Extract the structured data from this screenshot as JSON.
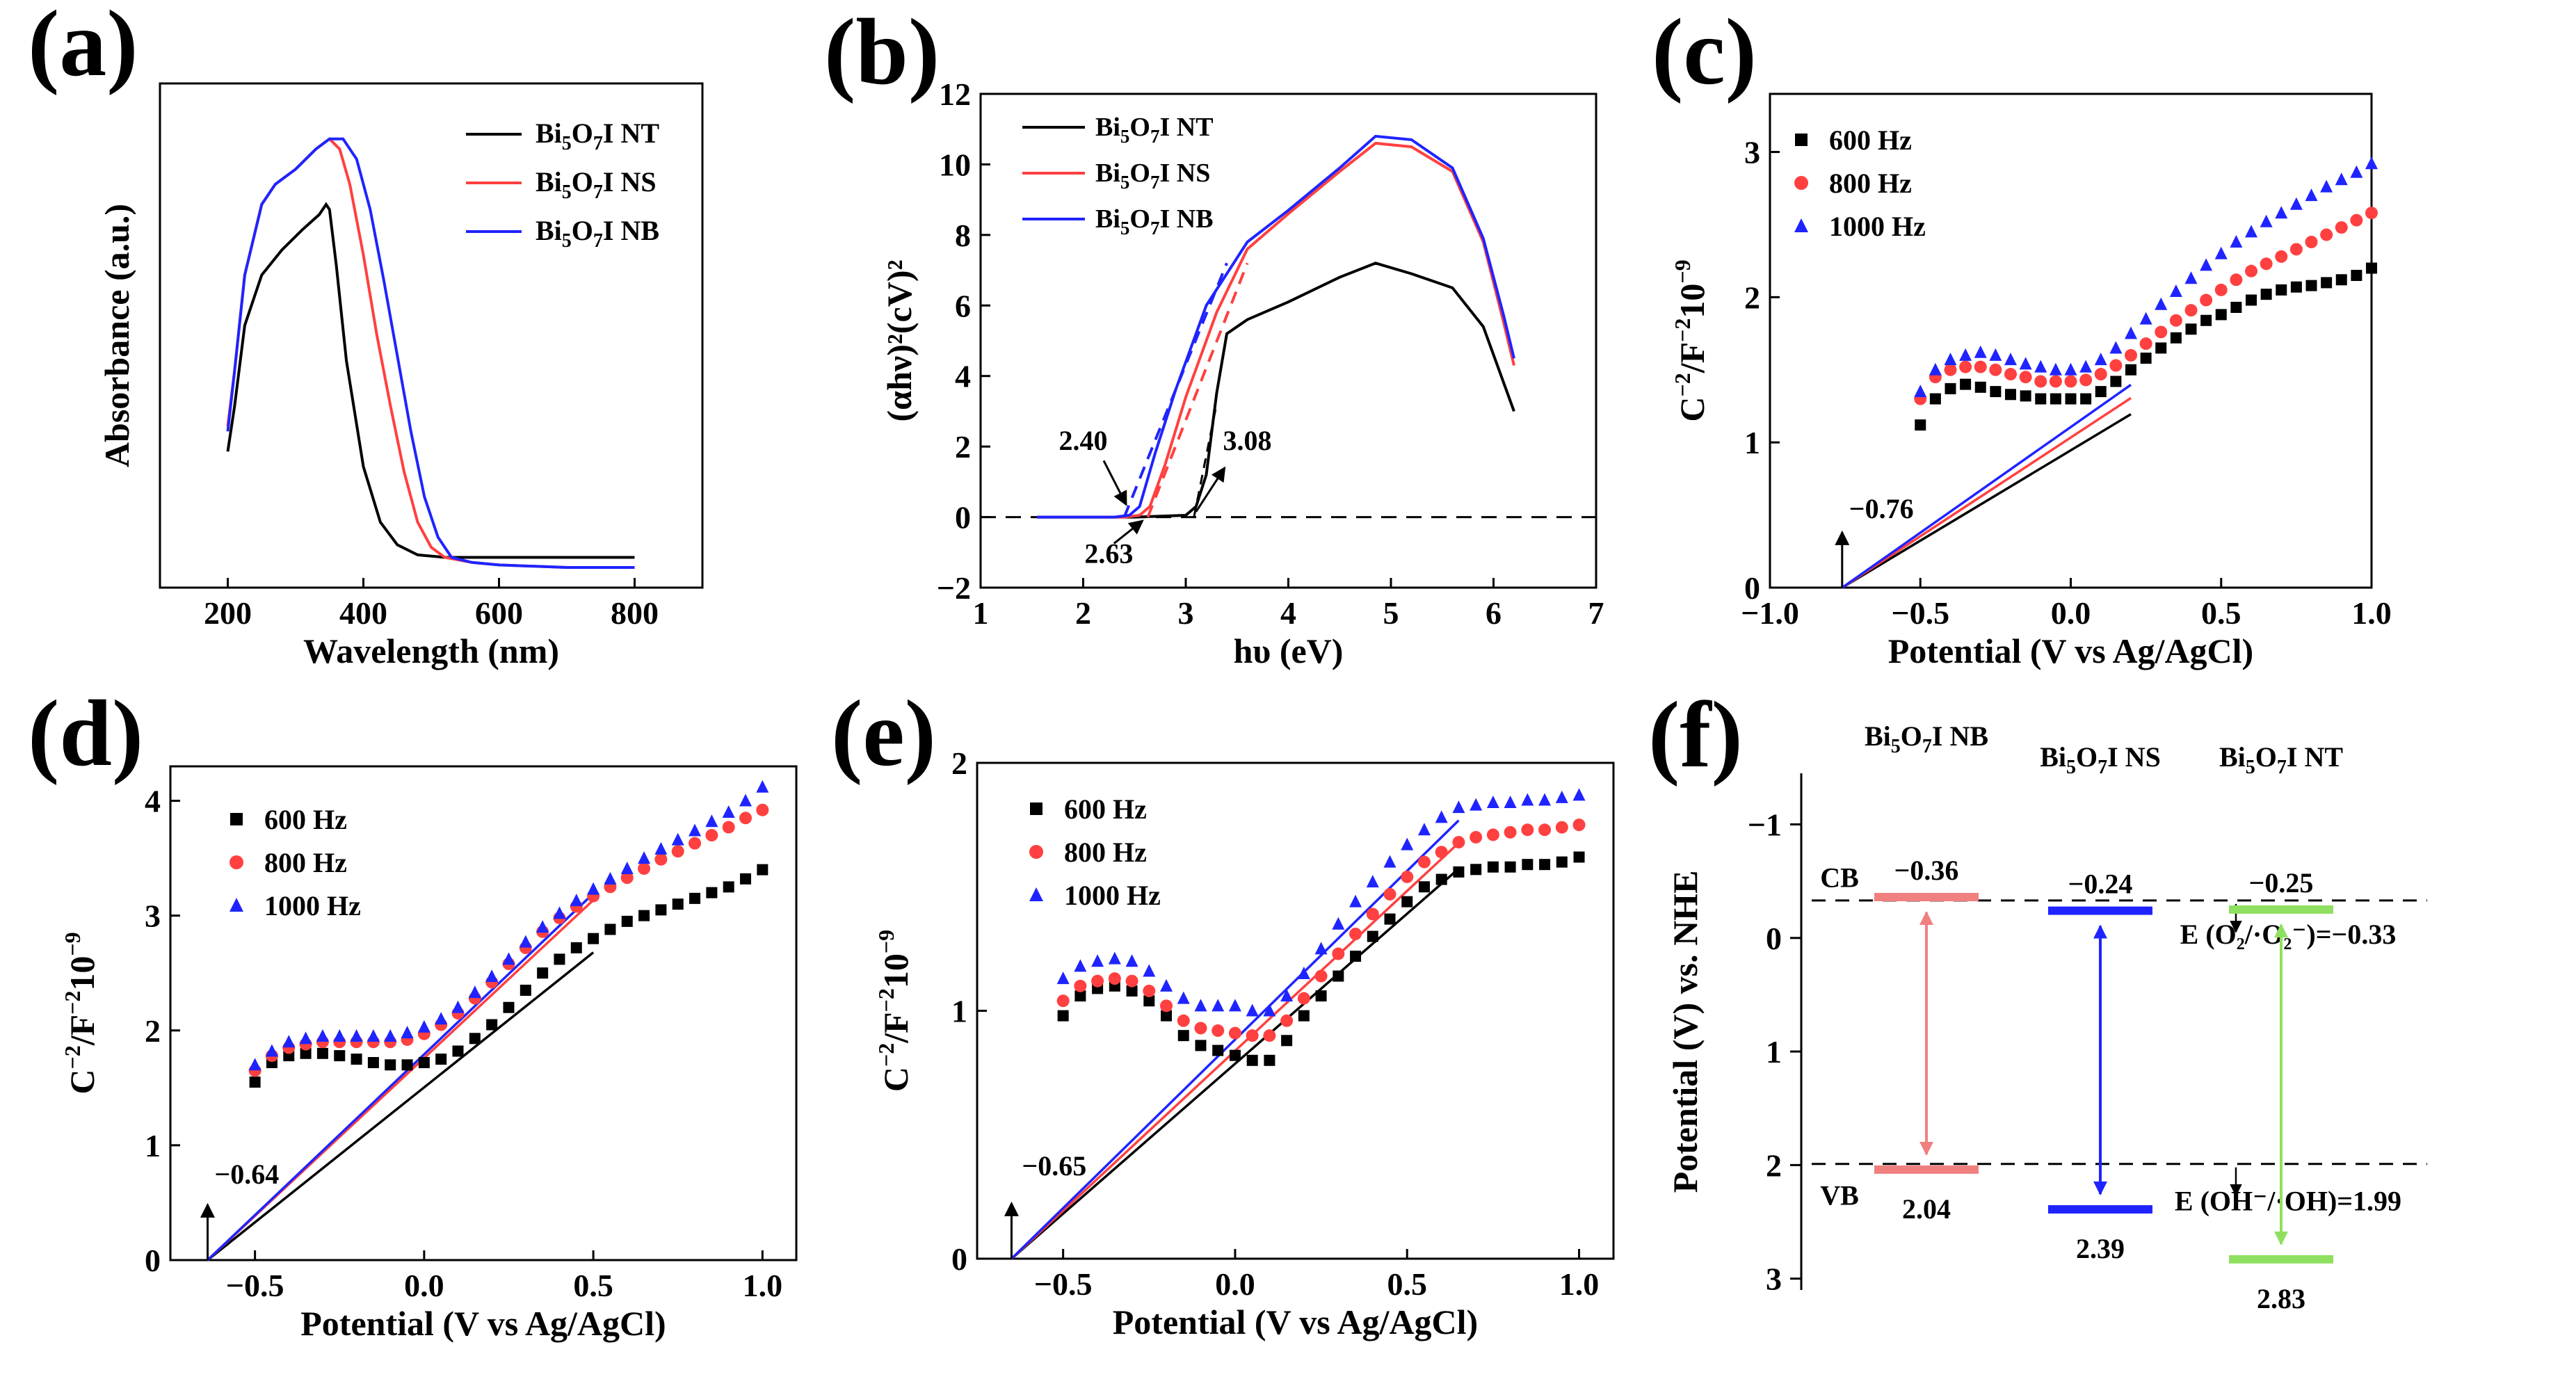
{
  "colors": {
    "black": "#000000",
    "red": "#ff4040",
    "blue": "#1f24ff",
    "green": "#8fe060",
    "pink": "#f08080"
  },
  "icons": {
    "square": "square-marker",
    "circle": "circle-marker",
    "triangle": "triangle-marker"
  },
  "chart_data": [
    {
      "id": "a",
      "type": "line",
      "panel": "(a)",
      "xlabel": "Wavelength (nm)",
      "ylabel": "Absorbance (a.u.)",
      "xlim": [
        100,
        900
      ],
      "ylim": [
        0,
        1.0
      ],
      "xticks": [
        200,
        400,
        600,
        800
      ],
      "yticks": [],
      "legend": [
        "Bi5O7I NT",
        "Bi5O7I NS",
        "Bi5O7I NB"
      ],
      "series": [
        {
          "name": "Bi5O7I NT",
          "color": "#000000",
          "x": [
            200,
            210,
            225,
            250,
            280,
            310,
            335,
            345,
            350,
            360,
            375,
            400,
            425,
            450,
            480,
            520,
            560,
            600,
            700,
            800
          ],
          "y": [
            0.27,
            0.36,
            0.52,
            0.62,
            0.67,
            0.71,
            0.74,
            0.76,
            0.75,
            0.64,
            0.45,
            0.24,
            0.13,
            0.085,
            0.065,
            0.06,
            0.06,
            0.06,
            0.06,
            0.06
          ]
        },
        {
          "name": "Bi5O7I NS",
          "color": "#ff4040",
          "x": [
            200,
            210,
            225,
            250,
            270,
            300,
            330,
            350,
            365,
            380,
            400,
            420,
            440,
            460,
            480,
            500,
            520,
            560,
            600,
            700,
            800
          ],
          "y": [
            0.32,
            0.43,
            0.62,
            0.76,
            0.8,
            0.83,
            0.87,
            0.89,
            0.87,
            0.8,
            0.66,
            0.5,
            0.36,
            0.23,
            0.13,
            0.08,
            0.06,
            0.05,
            0.045,
            0.04,
            0.04
          ]
        },
        {
          "name": "Bi5O7I NB",
          "color": "#1f24ff",
          "x": [
            200,
            210,
            225,
            250,
            270,
            300,
            330,
            350,
            370,
            390,
            410,
            430,
            450,
            470,
            490,
            510,
            530,
            560,
            600,
            700,
            800
          ],
          "y": [
            0.31,
            0.43,
            0.62,
            0.76,
            0.8,
            0.83,
            0.87,
            0.89,
            0.89,
            0.85,
            0.75,
            0.61,
            0.46,
            0.31,
            0.18,
            0.1,
            0.06,
            0.05,
            0.045,
            0.04,
            0.04
          ]
        }
      ]
    },
    {
      "id": "b",
      "type": "line",
      "panel": "(b)",
      "xlabel": "hυ (eV)",
      "ylabel": "(αhν)²(cV)²",
      "xlim": [
        1,
        7
      ],
      "ylim": [
        -2,
        12
      ],
      "xticks": [
        1,
        2,
        3,
        4,
        5,
        6,
        7
      ],
      "yticks": [
        -2,
        0,
        2,
        4,
        6,
        8,
        10,
        12
      ],
      "legend": [
        "Bi5O7I NT",
        "Bi5O7I NS",
        "Bi5O7I NB"
      ],
      "annotations": [
        "2.40",
        "2.63",
        "3.08"
      ],
      "series": [
        {
          "name": "Bi5O7I NT",
          "color": "#000000",
          "x": [
            1.55,
            2.5,
            3.0,
            3.1,
            3.2,
            3.3,
            3.4,
            3.6,
            4.0,
            4.5,
            4.85,
            5.2,
            5.6,
            5.9,
            6.1,
            6.2
          ],
          "y": [
            0,
            0,
            0.05,
            0.3,
            1.2,
            3.5,
            5.2,
            5.6,
            6.1,
            6.8,
            7.2,
            6.9,
            6.5,
            5.4,
            3.8,
            3.0
          ]
        },
        {
          "name": "Bi5O7I NS",
          "color": "#ff4040",
          "x": [
            1.55,
            2.4,
            2.55,
            2.65,
            2.8,
            3.0,
            3.3,
            3.6,
            4.0,
            4.5,
            4.85,
            5.2,
            5.6,
            5.9,
            6.1,
            6.2
          ],
          "y": [
            0,
            0,
            0.05,
            0.3,
            1.5,
            3.4,
            5.8,
            7.6,
            8.6,
            9.8,
            10.6,
            10.5,
            9.8,
            7.8,
            5.5,
            4.3
          ]
        },
        {
          "name": "Bi5O7I NB",
          "color": "#1f24ff",
          "x": [
            1.55,
            2.3,
            2.45,
            2.55,
            2.7,
            2.9,
            3.2,
            3.6,
            4.0,
            4.5,
            4.85,
            5.2,
            5.6,
            5.9,
            6.1,
            6.2
          ],
          "y": [
            0,
            0,
            0.05,
            0.3,
            1.8,
            3.6,
            6.0,
            7.8,
            8.7,
            9.9,
            10.8,
            10.7,
            9.9,
            7.9,
            5.7,
            4.5
          ]
        }
      ]
    },
    {
      "id": "c",
      "type": "scatter",
      "panel": "(c)",
      "xlabel": "Potential (V vs Ag/AgCl)",
      "ylabel": "C⁻²/F⁻²10⁻⁹",
      "xlim": [
        -1.0,
        1.0
      ],
      "ylim": [
        0,
        3.4
      ],
      "xticks": [
        -1.0,
        -0.5,
        0.0,
        0.5,
        1.0
      ],
      "yticks": [
        0,
        1,
        2,
        3
      ],
      "intercept_label": "-0.76",
      "intercept": -0.76,
      "legend": [
        "600 Hz",
        "800 Hz",
        "1000 Hz"
      ],
      "x": [
        -0.5,
        -0.45,
        -0.4,
        -0.35,
        -0.3,
        -0.25,
        -0.2,
        -0.15,
        -0.1,
        -0.05,
        0.0,
        0.05,
        0.1,
        0.15,
        0.2,
        0.25,
        0.3,
        0.35,
        0.4,
        0.45,
        0.5,
        0.55,
        0.6,
        0.65,
        0.7,
        0.75,
        0.8,
        0.85,
        0.9,
        0.95,
        1.0
      ],
      "series": [
        {
          "name": "600 Hz",
          "marker": "square",
          "color": "#000000",
          "values": [
            1.12,
            1.3,
            1.37,
            1.4,
            1.38,
            1.35,
            1.33,
            1.32,
            1.3,
            1.3,
            1.3,
            1.3,
            1.35,
            1.42,
            1.5,
            1.58,
            1.65,
            1.72,
            1.78,
            1.84,
            1.88,
            1.93,
            1.98,
            2.02,
            2.05,
            2.07,
            2.08,
            2.1,
            2.12,
            2.15,
            2.2
          ],
          "fit_slope": 1.244
        },
        {
          "name": "800 Hz",
          "marker": "circle",
          "color": "#ff4040",
          "values": [
            1.3,
            1.45,
            1.5,
            1.52,
            1.52,
            1.5,
            1.47,
            1.45,
            1.42,
            1.42,
            1.42,
            1.43,
            1.47,
            1.53,
            1.6,
            1.68,
            1.76,
            1.84,
            1.91,
            1.98,
            2.05,
            2.12,
            2.18,
            2.23,
            2.28,
            2.33,
            2.38,
            2.43,
            2.48,
            2.53,
            2.58
          ],
          "fit_slope": 1.36
        },
        {
          "name": "1000 Hz",
          "marker": "triangle",
          "color": "#1f24ff",
          "values": [
            1.35,
            1.5,
            1.57,
            1.6,
            1.62,
            1.6,
            1.57,
            1.54,
            1.52,
            1.5,
            1.5,
            1.52,
            1.57,
            1.65,
            1.75,
            1.85,
            1.95,
            2.04,
            2.13,
            2.22,
            2.3,
            2.38,
            2.45,
            2.52,
            2.58,
            2.64,
            2.7,
            2.76,
            2.81,
            2.86,
            2.92
          ],
          "fit_slope": 1.455
        }
      ]
    },
    {
      "id": "d",
      "type": "scatter",
      "panel": "(d)",
      "xlabel": "Potential (V vs Ag/AgCl)",
      "ylabel": "C⁻²/F⁻²10⁻⁹",
      "xlim": [
        -0.75,
        1.1
      ],
      "ylim": [
        0,
        4.3
      ],
      "xticks": [
        -0.5,
        0.0,
        0.5,
        1.0
      ],
      "yticks": [
        0,
        1,
        2,
        3,
        4
      ],
      "intercept_label": "-0.64",
      "intercept": -0.64,
      "legend": [
        "600 Hz",
        "800 Hz",
        "1000 Hz"
      ],
      "x": [
        -0.5,
        -0.45,
        -0.4,
        -0.35,
        -0.3,
        -0.25,
        -0.2,
        -0.15,
        -0.1,
        -0.05,
        0.0,
        0.05,
        0.1,
        0.15,
        0.2,
        0.25,
        0.3,
        0.35,
        0.4,
        0.45,
        0.5,
        0.55,
        0.6,
        0.65,
        0.7,
        0.75,
        0.8,
        0.85,
        0.9,
        0.95,
        1.0
      ],
      "series": [
        {
          "name": "600 Hz",
          "marker": "square",
          "color": "#000000",
          "values": [
            1.55,
            1.72,
            1.78,
            1.8,
            1.8,
            1.78,
            1.75,
            1.72,
            1.7,
            1.7,
            1.72,
            1.75,
            1.82,
            1.93,
            2.05,
            2.2,
            2.35,
            2.5,
            2.62,
            2.72,
            2.8,
            2.88,
            2.95,
            3.0,
            3.05,
            3.1,
            3.15,
            3.2,
            3.25,
            3.32,
            3.4
          ],
          "fit_slope": 2.35
        },
        {
          "name": "800 Hz",
          "marker": "circle",
          "color": "#ff4040",
          "values": [
            1.65,
            1.78,
            1.85,
            1.88,
            1.9,
            1.9,
            1.9,
            1.9,
            1.9,
            1.92,
            1.97,
            2.05,
            2.15,
            2.28,
            2.42,
            2.58,
            2.72,
            2.86,
            2.98,
            3.08,
            3.17,
            3.25,
            3.33,
            3.41,
            3.49,
            3.56,
            3.63,
            3.7,
            3.77,
            3.85,
            3.92
          ],
          "fit_slope": 2.75
        },
        {
          "name": "1000 Hz",
          "marker": "triangle",
          "color": "#1f24ff",
          "values": [
            1.7,
            1.82,
            1.9,
            1.93,
            1.95,
            1.95,
            1.95,
            1.95,
            1.95,
            1.98,
            2.03,
            2.1,
            2.2,
            2.33,
            2.47,
            2.62,
            2.77,
            2.9,
            3.02,
            3.13,
            3.23,
            3.32,
            3.41,
            3.5,
            3.58,
            3.66,
            3.74,
            3.82,
            3.9,
            4.0,
            4.12
          ],
          "fit_slope": 2.8
        }
      ]
    },
    {
      "id": "e",
      "type": "scatter",
      "panel": "(e)",
      "xlabel": "Potential (V vs Ag/AgCl)",
      "ylabel": "C⁻²/F⁻²10⁻⁹",
      "xlim": [
        -0.75,
        1.1
      ],
      "ylim": [
        0,
        2.0
      ],
      "xticks": [
        -0.5,
        0.0,
        0.5,
        1.0
      ],
      "yticks": [
        0,
        1,
        2
      ],
      "intercept_label": "-0.65",
      "intercept": -0.65,
      "legend": [
        "600 Hz",
        "800 Hz",
        "1000 Hz"
      ],
      "x": [
        -0.5,
        -0.45,
        -0.4,
        -0.35,
        -0.3,
        -0.25,
        -0.2,
        -0.15,
        -0.1,
        -0.05,
        0.0,
        0.05,
        0.1,
        0.15,
        0.2,
        0.25,
        0.3,
        0.35,
        0.4,
        0.45,
        0.5,
        0.55,
        0.6,
        0.65,
        0.7,
        0.75,
        0.8,
        0.85,
        0.9,
        0.95,
        1.0
      ],
      "series": [
        {
          "name": "600 Hz",
          "marker": "square",
          "color": "#000000",
          "values": [
            0.98,
            1.06,
            1.09,
            1.1,
            1.08,
            1.04,
            0.98,
            0.9,
            0.86,
            0.84,
            0.82,
            0.8,
            0.8,
            0.88,
            0.98,
            1.06,
            1.14,
            1.22,
            1.3,
            1.37,
            1.44,
            1.5,
            1.53,
            1.56,
            1.57,
            1.58,
            1.58,
            1.59,
            1.59,
            1.6,
            1.62
          ],
          "fit_slope": 1.21
        },
        {
          "name": "800 Hz",
          "marker": "circle",
          "color": "#ff4040",
          "values": [
            1.04,
            1.1,
            1.12,
            1.13,
            1.12,
            1.08,
            1.02,
            0.96,
            0.93,
            0.92,
            0.91,
            0.9,
            0.9,
            0.96,
            1.05,
            1.14,
            1.23,
            1.31,
            1.39,
            1.47,
            1.54,
            1.6,
            1.64,
            1.68,
            1.7,
            1.71,
            1.72,
            1.73,
            1.73,
            1.74,
            1.75
          ],
          "fit_slope": 1.29
        },
        {
          "name": "1000 Hz",
          "marker": "triangle",
          "color": "#1f24ff",
          "values": [
            1.13,
            1.18,
            1.2,
            1.21,
            1.2,
            1.16,
            1.1,
            1.05,
            1.02,
            1.02,
            1.02,
            1.0,
            1.0,
            1.06,
            1.15,
            1.25,
            1.35,
            1.44,
            1.52,
            1.6,
            1.67,
            1.73,
            1.78,
            1.82,
            1.83,
            1.84,
            1.84,
            1.85,
            1.85,
            1.86,
            1.87
          ],
          "fit_slope": 1.36
        }
      ]
    },
    {
      "id": "f",
      "type": "band-diagram",
      "panel": "(f)",
      "ylabel": "Potential (V) vs. NHE",
      "ylim": [
        3.1,
        -1.45
      ],
      "yticks": [
        -1,
        0,
        1,
        2,
        3
      ],
      "cb_label": "CB",
      "vb_label": "VB",
      "ref_lines": [
        {
          "label": "E (O₂/·O₂⁻)=−0.33",
          "value": -0.33
        },
        {
          "label": "E (OH⁻/·OH)=1.99",
          "value": 1.99
        }
      ],
      "materials": [
        {
          "name": "Bi5O7I NB",
          "cb": -0.36,
          "vb": 2.04,
          "cb_label": "−0.36",
          "vb_label": "2.04",
          "color": "#f08080"
        },
        {
          "name": "Bi5O7I NS",
          "cb": -0.24,
          "vb": 2.39,
          "cb_label": "−0.24",
          "vb_label": "2.39",
          "color": "#1f24ff"
        },
        {
          "name": "Bi5O7I NT",
          "cb": -0.25,
          "vb": 2.83,
          "cb_label": "−0.25",
          "vb_label": "2.83",
          "color": "#8fe060"
        }
      ]
    }
  ]
}
